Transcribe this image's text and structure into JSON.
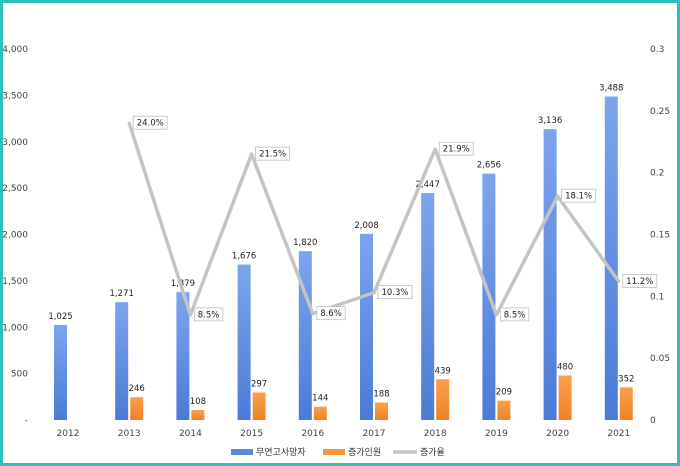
{
  "chart_data": {
    "type": "bar",
    "categories": [
      "2012",
      "2013",
      "2014",
      "2015",
      "2016",
      "2017",
      "2018",
      "2019",
      "2020",
      "2021"
    ],
    "series": [
      {
        "name": "무연고사망자",
        "type": "bar",
        "axis": "left",
        "color": "#5b8be0",
        "values": [
          1025,
          1271,
          1379,
          1676,
          1820,
          2008,
          2447,
          2656,
          3136,
          3488
        ],
        "labels": [
          "1,025",
          "1,271",
          "1,379",
          "1,676",
          "1,820",
          "2,008",
          "2,447",
          "2,656",
          "3,136",
          "3,488"
        ]
      },
      {
        "name": "증가인원",
        "type": "bar",
        "axis": "left",
        "color": "#f6953c",
        "values": [
          null,
          246,
          108,
          297,
          144,
          188,
          439,
          209,
          480,
          352
        ],
        "labels": [
          "",
          "246",
          "108",
          "297",
          "144",
          "188",
          "439",
          "209",
          "480",
          "352"
        ]
      },
      {
        "name": "증가율",
        "type": "line",
        "axis": "right",
        "color": "#bfbfbf",
        "values": [
          null,
          0.24,
          0.085,
          0.215,
          0.086,
          0.103,
          0.219,
          0.085,
          0.181,
          0.112
        ],
        "labels": [
          "",
          "24.0%",
          "8.5%",
          "21.5%",
          "8.6%",
          "10.3%",
          "21.9%",
          "8.5%",
          "18.1%",
          "11.2%"
        ]
      }
    ],
    "y_left": {
      "min": 0,
      "max": 4000,
      "ticks": [
        0,
        500,
        1000,
        1500,
        2000,
        2500,
        3000,
        3500,
        4000
      ],
      "tick_labels": [
        "-",
        "500",
        "1,000",
        "1,500",
        "2,000",
        "2,500",
        "3,000",
        "3,500",
        "4,000"
      ]
    },
    "y_right": {
      "min": 0,
      "max": 0.3,
      "ticks": [
        0,
        0.05,
        0.1,
        0.15,
        0.2,
        0.25,
        0.3
      ],
      "tick_labels": [
        "0",
        "0.05",
        "0.1",
        "0.15",
        "0.2",
        "0.25",
        "0.3"
      ]
    },
    "grid": false,
    "legend": "bottom"
  }
}
